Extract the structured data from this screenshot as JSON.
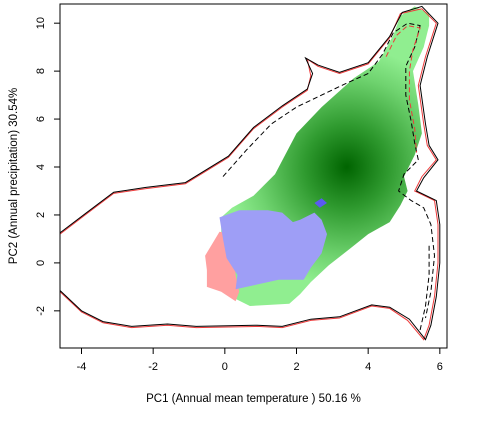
{
  "chart_data": {
    "type": "heatmap",
    "title": "",
    "xlabel": "PC1 (Annual mean temperature ) 50.16 %",
    "ylabel": "PC2 (Annual precipitation) 30.54%",
    "xlim": [
      -4.6,
      6.2
    ],
    "ylim": [
      -3.55,
      10.8
    ],
    "x_ticks": [
      -4,
      -2,
      0,
      2,
      4,
      6
    ],
    "y_ticks": [
      -2,
      0,
      2,
      4,
      6,
      8,
      10
    ],
    "x_tick_labels": [
      "-4",
      "-2",
      "0",
      "2",
      "4",
      "6"
    ],
    "y_tick_labels": [
      "-2",
      "0",
      "2",
      "4",
      "6",
      "8",
      "10"
    ],
    "density_peak": [
      3.4,
      4.0
    ],
    "colors": {
      "green_region": "#90ee90",
      "green_peak": "#006400",
      "overlap_region": "#9e9ef6",
      "red_region": "#ffa0a0",
      "contour_red": "#ee3b3b",
      "contour_black": "#000000"
    },
    "series": [
      {
        "kind": "region",
        "color": "#90ee90",
        "points": [
          [
            2.1,
            -1.3
          ],
          [
            1.8,
            -1.7
          ],
          [
            0.7,
            -1.8
          ],
          [
            0.3,
            -1.5
          ],
          [
            -0.05,
            -0.9
          ],
          [
            -0.05,
            -0.2
          ],
          [
            -0.1,
            1.3
          ],
          [
            -0.1,
            1.9
          ],
          [
            0.2,
            2.3
          ],
          [
            0.8,
            2.8
          ],
          [
            1.4,
            3.7
          ],
          [
            2.0,
            5.4
          ],
          [
            2.7,
            6.5
          ],
          [
            3.6,
            7.7
          ],
          [
            4.3,
            8.4
          ],
          [
            4.7,
            9.5
          ],
          [
            4.9,
            10.3
          ],
          [
            5.3,
            10.7
          ],
          [
            5.7,
            10.4
          ],
          [
            5.7,
            9.9
          ],
          [
            5.55,
            9.0
          ],
          [
            5.25,
            8.0
          ],
          [
            5.4,
            6.6
          ],
          [
            5.5,
            5.4
          ],
          [
            5.3,
            4.5
          ],
          [
            5.0,
            3.6
          ],
          [
            5.1,
            3.0
          ],
          [
            4.9,
            2.4
          ],
          [
            4.6,
            1.7
          ],
          [
            4.0,
            1.2
          ],
          [
            3.5,
            0.6
          ],
          [
            2.9,
            -0.1
          ],
          [
            2.4,
            -0.8
          ]
        ]
      },
      {
        "kind": "region",
        "color": "#ffa0a0",
        "points": [
          [
            -0.5,
            -1.0
          ],
          [
            -0.5,
            -0.3
          ],
          [
            -0.55,
            0.3
          ],
          [
            -0.35,
            0.8
          ],
          [
            -0.15,
            1.3
          ],
          [
            0.2,
            1.2
          ],
          [
            0.3,
            -0.5
          ],
          [
            0.4,
            -1.2
          ],
          [
            0.3,
            -1.6
          ],
          [
            -0.1,
            -1.2
          ]
        ]
      },
      {
        "kind": "region",
        "color": "#9e9ef6",
        "points": [
          [
            0.3,
            -1.1
          ],
          [
            0.35,
            -0.5
          ],
          [
            0.05,
            0.2
          ],
          [
            -0.05,
            1.0
          ],
          [
            -0.15,
            1.9
          ],
          [
            0.4,
            2.2
          ],
          [
            1.2,
            2.2
          ],
          [
            1.6,
            2.1
          ],
          [
            1.9,
            1.7
          ],
          [
            2.1,
            1.8
          ],
          [
            2.5,
            2.1
          ],
          [
            2.7,
            1.8
          ],
          [
            2.85,
            1.2
          ],
          [
            2.7,
            0.4
          ],
          [
            2.4,
            -0.2
          ],
          [
            2.2,
            -0.7
          ],
          [
            1.5,
            -0.7
          ],
          [
            0.9,
            -0.9
          ]
        ]
      },
      {
        "kind": "region",
        "color": "#5a5af0",
        "points": [
          [
            2.5,
            2.5
          ],
          [
            2.7,
            2.7
          ],
          [
            2.85,
            2.5
          ],
          [
            2.65,
            2.3
          ]
        ]
      },
      {
        "kind": "contour",
        "color": "#ee3b3b",
        "dash": false,
        "points": [
          [
            -4.6,
            1.2
          ],
          [
            -3.9,
            2.0
          ],
          [
            -3.1,
            2.9
          ],
          [
            -2.2,
            3.1
          ],
          [
            -1.1,
            3.3
          ],
          [
            0.1,
            4.4
          ],
          [
            0.8,
            5.6
          ],
          [
            1.6,
            6.5
          ],
          [
            2.3,
            7.2
          ],
          [
            2.4,
            7.8
          ],
          [
            2.3,
            8.5
          ],
          [
            2.6,
            8.2
          ],
          [
            3.2,
            7.9
          ],
          [
            4.0,
            8.3
          ],
          [
            4.6,
            9.4
          ],
          [
            4.9,
            10.4
          ],
          [
            5.5,
            10.6
          ],
          [
            5.9,
            10.0
          ],
          [
            5.6,
            8.6
          ],
          [
            5.4,
            7.4
          ],
          [
            5.55,
            5.8
          ],
          [
            5.65,
            4.9
          ],
          [
            5.9,
            4.3
          ],
          [
            5.5,
            3.6
          ],
          [
            5.3,
            3.0
          ],
          [
            5.85,
            2.6
          ],
          [
            5.95,
            1.6
          ],
          [
            5.95,
            0.0
          ],
          [
            5.85,
            -1.4
          ],
          [
            5.7,
            -2.6
          ],
          [
            5.55,
            -3.2
          ],
          [
            5.1,
            -2.4
          ],
          [
            4.6,
            -1.9
          ],
          [
            4.1,
            -1.8
          ],
          [
            3.2,
            -2.3
          ],
          [
            2.4,
            -2.4
          ],
          [
            1.6,
            -2.7
          ],
          [
            0.9,
            -2.65
          ],
          [
            -0.8,
            -2.7
          ],
          [
            -1.6,
            -2.6
          ],
          [
            -2.6,
            -2.7
          ],
          [
            -3.4,
            -2.5
          ],
          [
            -4.0,
            -2.05
          ],
          [
            -4.6,
            -1.2
          ]
        ]
      },
      {
        "kind": "contour",
        "color": "#000000",
        "dash": false,
        "points": [
          [
            -4.6,
            1.25
          ],
          [
            -3.9,
            2.05
          ],
          [
            -3.1,
            2.95
          ],
          [
            -2.2,
            3.15
          ],
          [
            -1.1,
            3.35
          ],
          [
            0.1,
            4.45
          ],
          [
            0.8,
            5.65
          ],
          [
            1.6,
            6.55
          ],
          [
            2.3,
            7.25
          ],
          [
            2.45,
            7.9
          ],
          [
            2.25,
            8.55
          ],
          [
            2.6,
            8.25
          ],
          [
            3.2,
            7.95
          ],
          [
            4.0,
            8.35
          ],
          [
            4.6,
            9.45
          ],
          [
            4.95,
            10.45
          ],
          [
            5.5,
            10.7
          ],
          [
            5.95,
            10.0
          ],
          [
            5.65,
            8.6
          ],
          [
            5.45,
            7.4
          ],
          [
            5.6,
            5.8
          ],
          [
            5.7,
            4.9
          ],
          [
            5.95,
            4.3
          ],
          [
            5.55,
            3.55
          ],
          [
            5.35,
            3.0
          ],
          [
            5.9,
            2.6
          ],
          [
            6.0,
            1.6
          ],
          [
            6.0,
            0.0
          ],
          [
            5.9,
            -1.4
          ],
          [
            5.75,
            -2.6
          ],
          [
            5.6,
            -3.2
          ],
          [
            5.15,
            -2.35
          ],
          [
            4.6,
            -1.85
          ],
          [
            4.1,
            -1.75
          ],
          [
            3.2,
            -2.25
          ],
          [
            2.4,
            -2.35
          ],
          [
            1.6,
            -2.65
          ],
          [
            0.9,
            -2.6
          ],
          [
            -0.8,
            -2.65
          ],
          [
            -1.6,
            -2.55
          ],
          [
            -2.6,
            -2.65
          ],
          [
            -3.4,
            -2.45
          ],
          [
            -4.0,
            -2.0
          ],
          [
            -4.6,
            -1.15
          ]
        ]
      },
      {
        "kind": "contour",
        "color": "#000000",
        "dash": true,
        "points": [
          [
            -0.05,
            3.6
          ],
          [
            0.6,
            4.7
          ],
          [
            1.3,
            5.8
          ],
          [
            2.0,
            6.5
          ],
          [
            2.7,
            7.0
          ],
          [
            3.4,
            7.5
          ],
          [
            4.0,
            7.9
          ],
          [
            4.4,
            8.7
          ],
          [
            4.7,
            9.6
          ],
          [
            5.1,
            10.0
          ],
          [
            5.45,
            9.9
          ],
          [
            5.3,
            9.0
          ],
          [
            5.05,
            8.2
          ],
          [
            5.05,
            7.0
          ],
          [
            5.2,
            5.9
          ],
          [
            5.3,
            5.0
          ],
          [
            5.4,
            4.3
          ],
          [
            5.0,
            3.7
          ],
          [
            4.85,
            3.0
          ],
          [
            5.2,
            2.6
          ],
          [
            5.55,
            2.3
          ],
          [
            5.75,
            1.6
          ],
          [
            5.85,
            0.3
          ],
          [
            5.75,
            -1.2
          ],
          [
            5.6,
            -2.3
          ]
        ]
      },
      {
        "kind": "contour",
        "color": "#ee3b3b",
        "dash": true,
        "points": [
          [
            4.5,
            8.6
          ],
          [
            4.8,
            9.5
          ],
          [
            5.1,
            9.9
          ],
          [
            5.45,
            9.8
          ],
          [
            5.25,
            8.9
          ],
          [
            5.15,
            8.0
          ],
          [
            5.15,
            6.8
          ],
          [
            5.3,
            5.6
          ],
          [
            5.35,
            4.6
          ]
        ]
      },
      {
        "kind": "contour",
        "color": "#000000",
        "dash": true,
        "points": [
          [
            5.45,
            -2.8
          ],
          [
            5.6,
            -1.8
          ],
          [
            5.7,
            -0.5
          ],
          [
            5.7,
            0.8
          ]
        ]
      }
    ]
  }
}
